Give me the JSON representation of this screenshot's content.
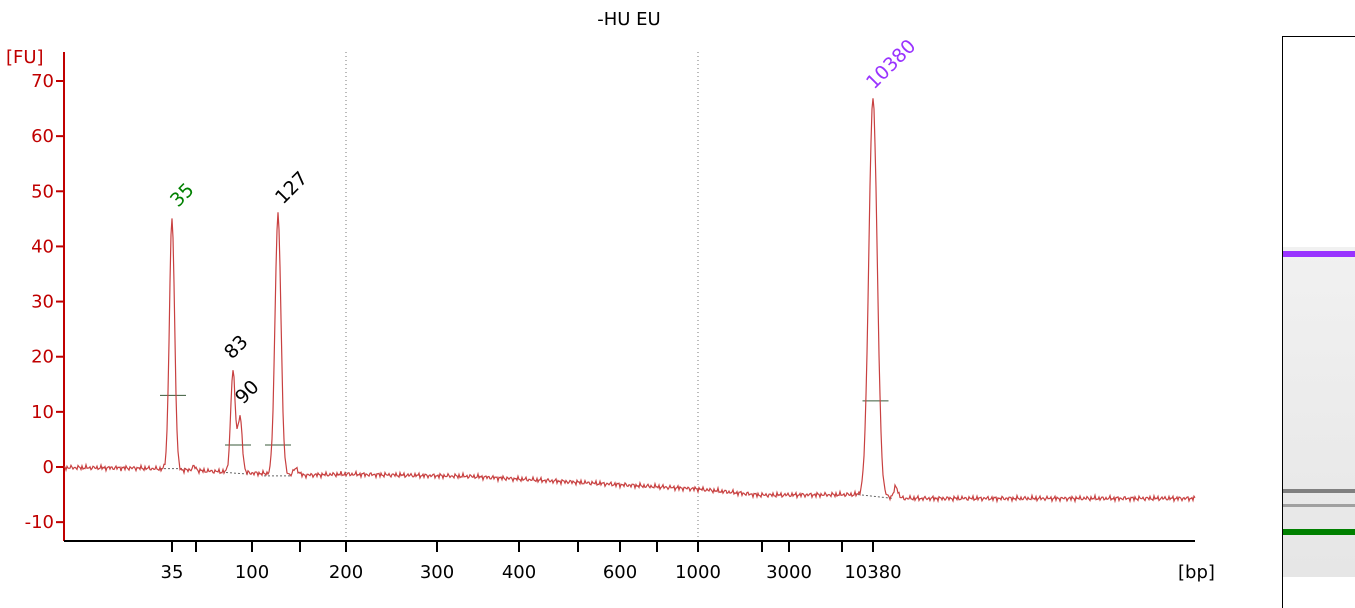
{
  "chart_data": {
    "type": "line",
    "title": "-HU EU",
    "ylabel": "[FU]",
    "xlabel": "[bp]",
    "ylim": [
      -12,
      73
    ],
    "y_ticks": [
      -10,
      0,
      10,
      20,
      30,
      40,
      50,
      60,
      70
    ],
    "x_tick_labels": [
      "35",
      "100",
      "200",
      "300",
      "400",
      "600",
      "1000",
      "3000",
      "10380"
    ],
    "x_unlabeled_ticks": [
      "50",
      "150",
      "500",
      "700",
      "2000",
      "7000"
    ],
    "reference_lines_bp": [
      "200",
      "1000"
    ],
    "series": [
      {
        "x": [
          "35",
          "83",
          "90",
          "127",
          "200",
          "1000",
          "10380"
        ],
        "y": [
          45.5,
          18,
          9.5,
          46.5,
          -1.3,
          -4.0,
          67
        ]
      }
    ],
    "peaks": [
      {
        "label": "35",
        "size_bp": 35,
        "height_fu": 45.5,
        "color": "#008000"
      },
      {
        "label": "83",
        "size_bp": 83,
        "height_fu": 18,
        "color": "#000000"
      },
      {
        "label": "90",
        "size_bp": 90,
        "height_fu": 9.5,
        "color": "#000000"
      },
      {
        "label": "127",
        "size_bp": 127,
        "height_fu": 46.5,
        "color": "#000000"
      },
      {
        "label": "10380",
        "size_bp": 10380,
        "height_fu": 67,
        "color": "#9933ff"
      }
    ],
    "colors": {
      "trace": "#c84040",
      "axis": "#c00000",
      "lower_marker": "#008000",
      "upper_marker": "#9933ff"
    }
  },
  "gel": {
    "bands": [
      {
        "name": "upper-marker",
        "color": "#9933ff"
      },
      {
        "name": "sample-band-1",
        "color": "#808080"
      },
      {
        "name": "sample-band-2",
        "color": "#a0a0a0"
      },
      {
        "name": "lower-marker",
        "color": "#008000"
      }
    ]
  }
}
